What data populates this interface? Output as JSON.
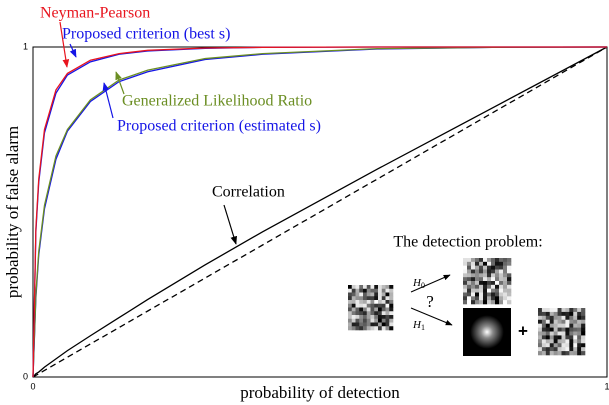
{
  "chart_data": {
    "type": "line",
    "x_label": "probability of detection",
    "y_label": "probability of false alarm",
    "xlim": [
      0,
      1
    ],
    "ylim": [
      0,
      1
    ],
    "xticks": [
      0,
      1
    ],
    "yticks": [
      0,
      1
    ],
    "x": [
      0,
      0.005,
      0.01,
      0.02,
      0.04,
      0.06,
      0.1,
      0.15,
      0.2,
      0.3,
      0.4,
      0.6,
      0.8,
      1
    ],
    "series": [
      {
        "name": "Neyman-Pearson",
        "color": "#e8141e",
        "values": [
          0,
          0.45,
          0.6,
          0.75,
          0.87,
          0.92,
          0.96,
          0.98,
          0.99,
          0.997,
          0.999,
          1,
          1,
          1
        ]
      },
      {
        "name": "Proposed criterion (best s)",
        "color": "#1414e6",
        "values": [
          0,
          0.44,
          0.59,
          0.74,
          0.86,
          0.915,
          0.955,
          0.978,
          0.988,
          0.996,
          0.999,
          1,
          1,
          1
        ]
      },
      {
        "name": "Generalized Likelihood Ratio",
        "color": "#6b8e23",
        "values": [
          0,
          0.25,
          0.38,
          0.52,
          0.67,
          0.75,
          0.84,
          0.9,
          0.93,
          0.965,
          0.98,
          0.995,
          0.999,
          1
        ]
      },
      {
        "name": "Proposed criterion (estimated s)",
        "color": "#1414e6",
        "values": [
          0,
          0.24,
          0.37,
          0.51,
          0.66,
          0.745,
          0.835,
          0.895,
          0.925,
          0.962,
          0.978,
          0.994,
          0.999,
          1
        ]
      },
      {
        "name": "Correlation",
        "color": "#000000",
        "values": [
          0,
          0.01,
          0.015,
          0.03,
          0.055,
          0.08,
          0.125,
          0.18,
          0.235,
          0.34,
          0.44,
          0.63,
          0.815,
          1
        ]
      },
      {
        "color": "#000000",
        "dashed": true,
        "values": [
          0,
          0.005,
          0.01,
          0.02,
          0.04,
          0.06,
          0.1,
          0.15,
          0.2,
          0.3,
          0.4,
          0.6,
          0.8,
          1
        ]
      }
    ],
    "inset": {
      "title": "The detection problem:",
      "h0": "H",
      "h0_sub": "0",
      "h1": "H",
      "h1_sub": "1",
      "question": "?",
      "plus": "+"
    }
  }
}
